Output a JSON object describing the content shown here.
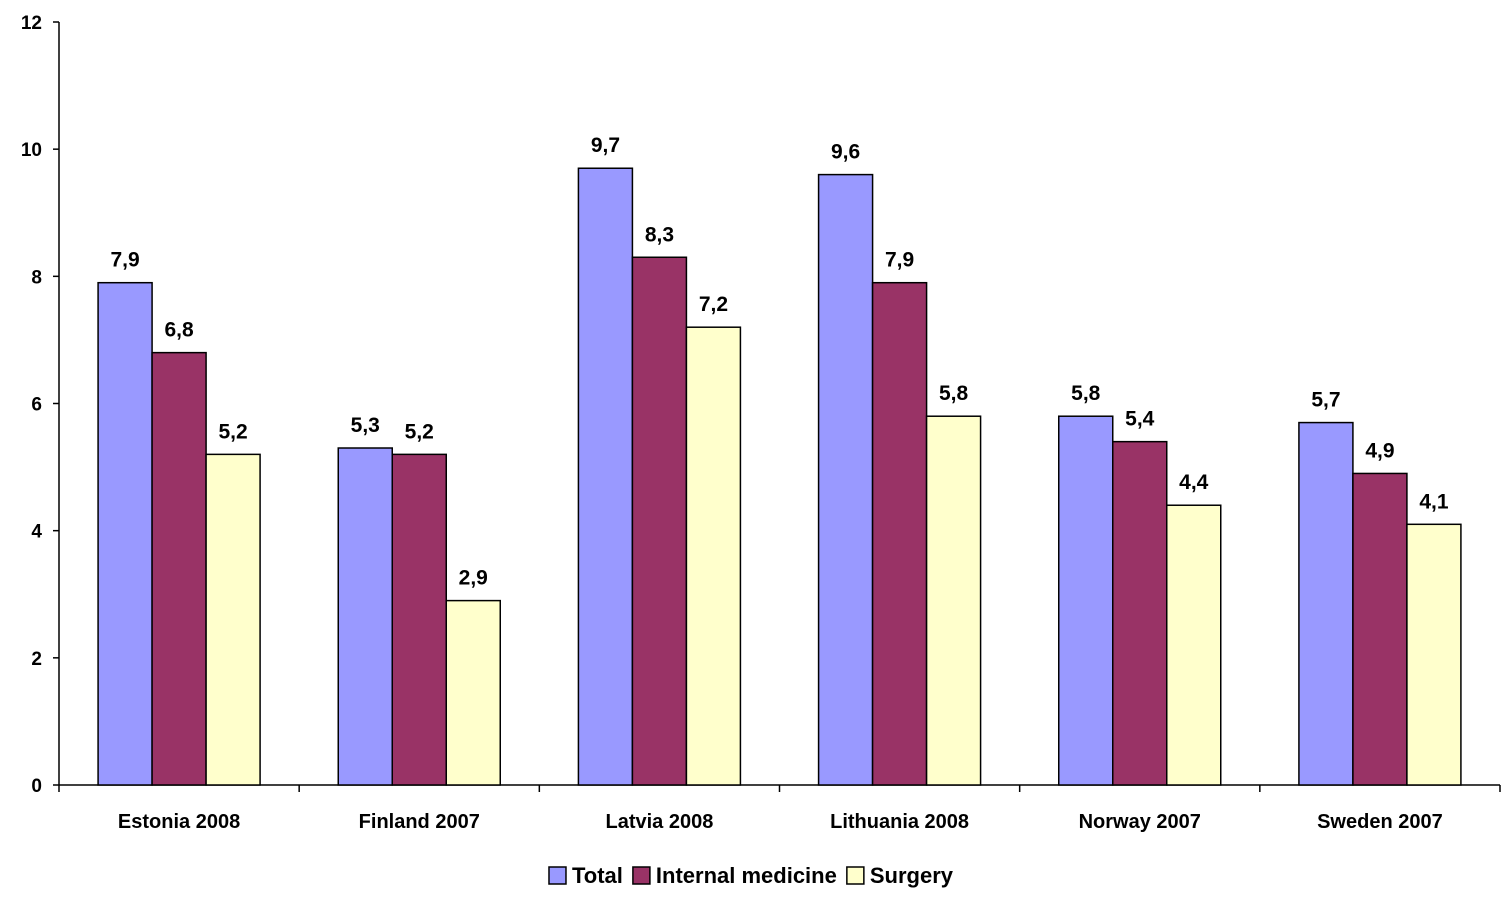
{
  "chart_data": {
    "type": "bar",
    "title": "",
    "xlabel": "",
    "ylabel": "",
    "ylim": [
      0,
      12
    ],
    "yticks": [
      "0",
      "2",
      "4",
      "6",
      "8",
      "10",
      "12"
    ],
    "ytick_values": [
      0,
      2,
      4,
      6,
      8,
      10,
      12
    ],
    "categories": [
      "Estonia 2008",
      "Finland 2007",
      "Latvia 2008",
      "Lithuania 2008",
      "Norway 2007",
      "Sweden 2007"
    ],
    "series": [
      {
        "name": "Total",
        "color": "#9999ff",
        "values": [
          7.9,
          5.3,
          9.7,
          9.6,
          5.8,
          5.7
        ],
        "labels": [
          "7,9",
          "5,3",
          "9,7",
          "9,6",
          "5,8",
          "5,7"
        ]
      },
      {
        "name": "Internal medicine",
        "color": "#993366",
        "values": [
          6.8,
          5.2,
          8.3,
          7.9,
          5.4,
          4.9
        ],
        "labels": [
          "6,8",
          "5,2",
          "8,3",
          "7,9",
          "5,4",
          "4,9"
        ]
      },
      {
        "name": "Surgery",
        "color": "#ffffcc",
        "values": [
          5.2,
          2.9,
          7.2,
          5.8,
          4.4,
          4.1
        ],
        "labels": [
          "5,2",
          "2,9",
          "7,2",
          "5,8",
          "4,4",
          "4,1"
        ]
      }
    ],
    "grid": false,
    "legend_position": "bottom"
  }
}
